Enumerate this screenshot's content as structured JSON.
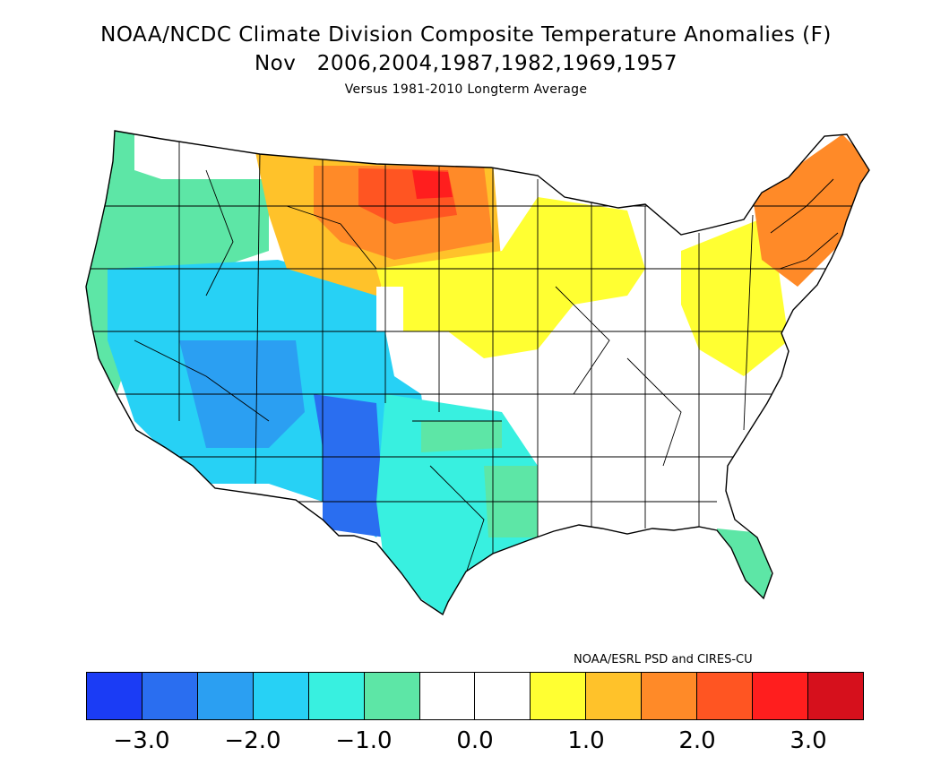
{
  "title": {
    "line1": "NOAA/NCDC Climate Division Composite Temperature Anomalies (F)",
    "line2": "Nov   2006,2004,1987,1982,1969,1957",
    "line3": "Versus 1981-2010 Longterm Average"
  },
  "credit": "NOAA/ESRL PSD and CIRES-CU",
  "map": {
    "region": "Contiguous United States climate divisions",
    "anomaly_pattern": [
      {
        "area": "Northern Plains (ND/SD/MN border)",
        "anomaly_f": 2.5
      },
      {
        "area": "Montana / Dakotas / Nebraska",
        "anomaly_f": 1.5
      },
      {
        "area": "Upper Midwest / Great Lakes",
        "anomaly_f": 0.75
      },
      {
        "area": "New England",
        "anomaly_f": 1.5
      },
      {
        "area": "Mid-Atlantic / Pennsylvania / New York",
        "anomaly_f": 0.75
      },
      {
        "area": "Southeast / Ohio Valley",
        "anomaly_f": 0.0
      },
      {
        "area": "Pacific Northwest",
        "anomaly_f": -0.75
      },
      {
        "area": "Great Basin / Southwest",
        "anomaly_f": -1.75
      },
      {
        "area": "New Mexico / West Texas",
        "anomaly_f": -2.5
      },
      {
        "area": "Texas / Oklahoma",
        "anomaly_f": -1.25
      },
      {
        "area": "Florida peninsula",
        "anomaly_f": -0.75
      }
    ]
  },
  "colorbar": {
    "colors": [
      "#1b3cf5",
      "#2a6ef0",
      "#2b9ff2",
      "#27d1f5",
      "#38f0e0",
      "#5de6a6",
      "#ffffff",
      "#ffffff",
      "#ffff32",
      "#ffc22a",
      "#ff8a28",
      "#ff5522",
      "#ff1e1e",
      "#d6101c"
    ],
    "tick_labels": [
      "−3.0",
      "−2.0",
      "−1.0",
      "0.0",
      "1.0",
      "2.0",
      "3.0"
    ]
  }
}
